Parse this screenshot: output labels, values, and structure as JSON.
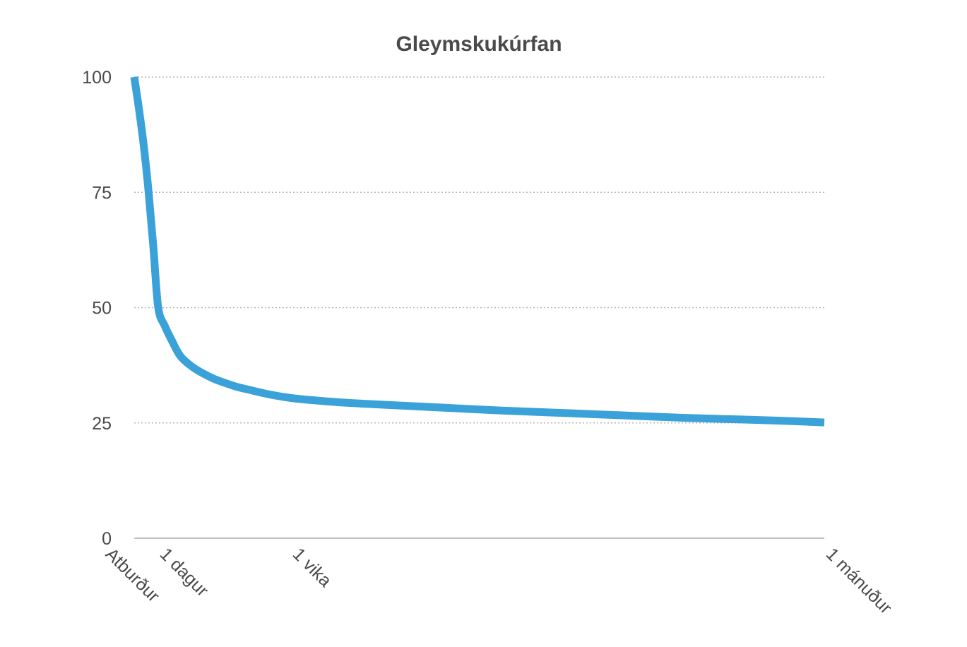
{
  "chart_data": {
    "type": "line",
    "title": "Gleymskukúrfan",
    "xlabel": "",
    "ylabel": "",
    "ylim": [
      0,
      100
    ],
    "xlim": [
      0,
      30
    ],
    "grid": true,
    "yticks": [
      {
        "value": 0,
        "label": "0"
      },
      {
        "value": 25,
        "label": "25"
      },
      {
        "value": 50,
        "label": "50"
      },
      {
        "value": 75,
        "label": "75"
      },
      {
        "value": 100,
        "label": "100"
      }
    ],
    "xticks": [
      {
        "value": 0,
        "label": "Atburður"
      },
      {
        "value": 1,
        "label": "1 dagur"
      },
      {
        "value": 7,
        "label": "1 vika"
      },
      {
        "value": 30,
        "label": "1 mánuður"
      }
    ],
    "series": [
      {
        "color": "#3aa2d8",
        "x": [
          0,
          0.2,
          0.4,
          0.6,
          0.8,
          1,
          1.3,
          1.6,
          2,
          2.5,
          3,
          3.5,
          4,
          4.5,
          5,
          6,
          7,
          8,
          9,
          10,
          12,
          14,
          16,
          18,
          20,
          22,
          24,
          26,
          28,
          30
        ],
        "y": [
          100,
          93,
          85,
          75,
          63,
          50,
          46,
          43,
          39.5,
          37.3,
          35.8,
          34.6,
          33.7,
          32.9,
          32.3,
          31.2,
          30.4,
          29.9,
          29.5,
          29.2,
          28.7,
          28.2,
          27.7,
          27.3,
          26.9,
          26.5,
          26.1,
          25.8,
          25.5,
          25.1
        ]
      }
    ]
  }
}
